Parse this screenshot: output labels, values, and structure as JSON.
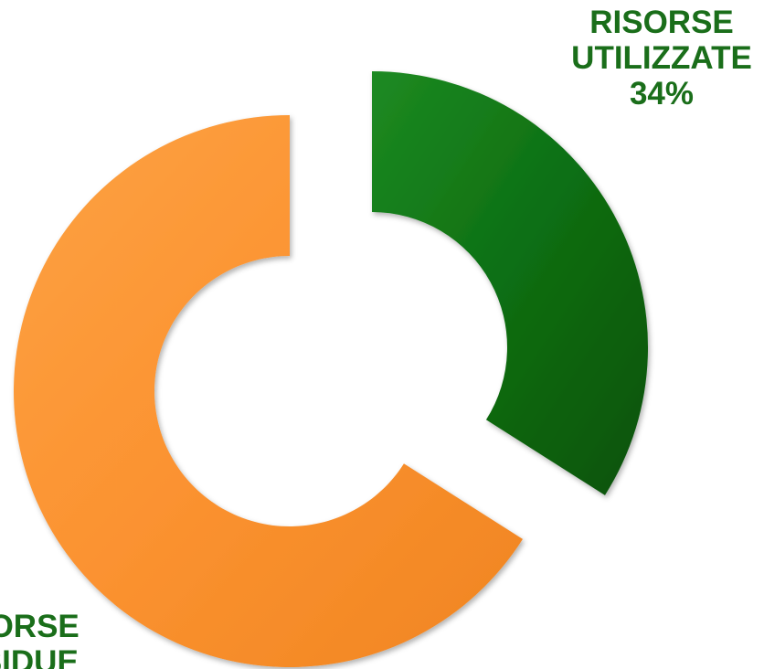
{
  "chart_data": {
    "type": "pie",
    "variant": "donut",
    "exploded": true,
    "categories": [
      "RISORSE UTILIZZATE",
      "RISORSE RESIDUE"
    ],
    "values": [
      34,
      66
    ],
    "unit": "%",
    "colors": [
      "#0d6e12",
      "#fb9230"
    ],
    "label_color": "#1a6e1a",
    "labels": [
      {
        "lines": [
          "RISORSE",
          "UTILIZZATE",
          "34%"
        ]
      },
      {
        "lines": [
          "RISORSE",
          "RESIDUE"
        ]
      }
    ]
  }
}
